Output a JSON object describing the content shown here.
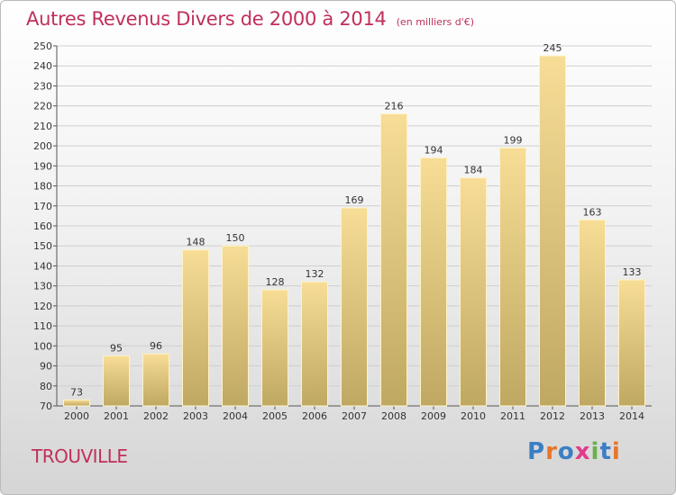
{
  "header": {
    "title": "Autres Revenus Divers de 2000 à 2014",
    "unit": "(en milliers d'€)"
  },
  "footer": {
    "place": "TROUVILLE",
    "brand": "Proxiti",
    "brand_colors": [
      "#3a7fc4",
      "#e8762a",
      "#3a7fc4",
      "#e23a8c",
      "#6ab04c",
      "#3a7fc4",
      "#e8762a"
    ]
  },
  "colors": {
    "title": "#c0305a",
    "bar_top": "#f7dd96",
    "bar_bottom": "#bfa862",
    "grid": "#cfcfcf"
  },
  "chart_data": {
    "type": "bar",
    "title": "Autres Revenus Divers de 2000 à 2014",
    "xlabel": "",
    "ylabel": "",
    "categories": [
      "2000",
      "2001",
      "2002",
      "2003",
      "2004",
      "2005",
      "2006",
      "2007",
      "2008",
      "2009",
      "2010",
      "2011",
      "2012",
      "2013",
      "2014"
    ],
    "values": [
      73,
      95,
      96,
      148,
      150,
      128,
      132,
      169,
      216,
      194,
      184,
      199,
      245,
      163,
      133
    ],
    "ylim": [
      70,
      250
    ],
    "yticks": [
      70,
      80,
      90,
      100,
      110,
      120,
      130,
      140,
      150,
      160,
      170,
      180,
      190,
      200,
      210,
      220,
      230,
      240,
      250
    ],
    "grid": true,
    "data_labels": true
  }
}
